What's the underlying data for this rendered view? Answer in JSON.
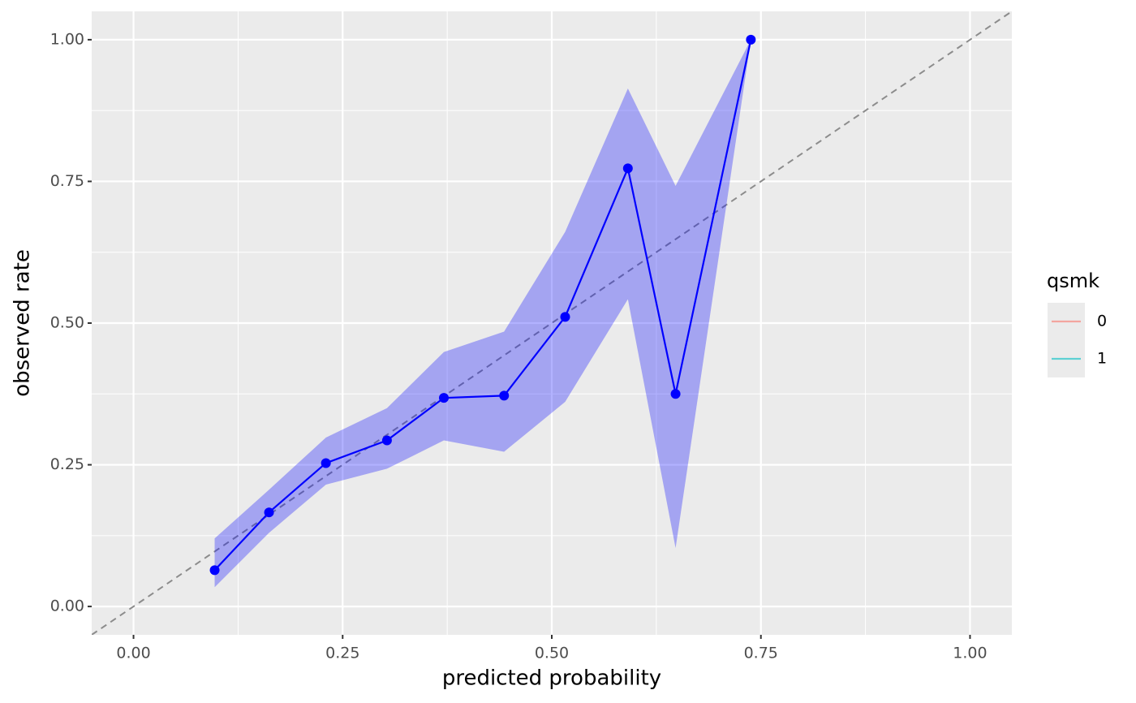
{
  "chart_data": {
    "type": "line",
    "x_label": "predicted probability",
    "y_label": "observed rate",
    "x": [
      0.097,
      0.162,
      0.23,
      0.303,
      0.371,
      0.443,
      0.516,
      0.591,
      0.648,
      0.738
    ],
    "values": [
      0.064,
      0.166,
      0.253,
      0.293,
      0.368,
      0.372,
      0.511,
      0.773,
      0.375,
      1.0
    ],
    "lower": [
      0.034,
      0.13,
      0.215,
      0.243,
      0.293,
      0.273,
      0.361,
      0.542,
      0.103,
      1.0
    ],
    "upper": [
      0.12,
      0.206,
      0.298,
      0.35,
      0.449,
      0.485,
      0.661,
      0.914,
      0.742,
      1.0
    ],
    "color": "#0000ff",
    "band_color": "#0000ff",
    "reference_color": "#8c8c8c",
    "xlim": [
      -0.05,
      1.05
    ],
    "ylim": [
      -0.05,
      1.05
    ],
    "xticks": [
      {
        "value": 0,
        "label": "0.00"
      },
      {
        "value": 0.25,
        "label": "0.25"
      },
      {
        "value": 0.5,
        "label": "0.50"
      },
      {
        "value": 0.75,
        "label": "0.75"
      },
      {
        "value": 1,
        "label": "1.00"
      }
    ],
    "yticks": [
      {
        "value": 0,
        "label": "0.00"
      },
      {
        "value": 0.25,
        "label": "0.25"
      },
      {
        "value": 0.5,
        "label": "0.50"
      },
      {
        "value": 0.75,
        "label": "0.75"
      },
      {
        "value": 1,
        "label": "1.00"
      }
    ],
    "grid": true,
    "legend": {
      "title": "qsmk",
      "position": "right",
      "entries": [
        {
          "label": "0",
          "color": "#F8766D"
        },
        {
          "label": "1",
          "color": "#00BFC4"
        }
      ]
    }
  }
}
